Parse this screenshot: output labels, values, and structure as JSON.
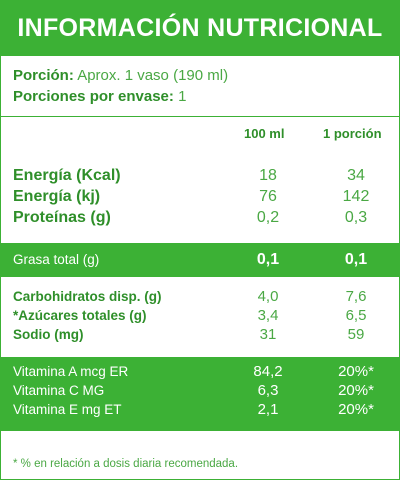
{
  "title": "INFORMACIÓN NUTRICIONAL",
  "serving": {
    "portion_label": "Porción:",
    "portion_value": "Aprox. 1 vaso (190 ml)",
    "per_container_label": "Porciones por envase:",
    "per_container_value": "1"
  },
  "columns": {
    "per100": "100 ml",
    "perPortion": "1 porción"
  },
  "energy_rows": [
    {
      "name": "Energía (Kcal)",
      "per100": "18",
      "perPortion": "34"
    },
    {
      "name": "Energía (kj)",
      "per100": "76",
      "perPortion": "142"
    },
    {
      "name": "Proteínas (g)",
      "per100": "0,2",
      "perPortion": "0,3"
    }
  ],
  "fat_row": {
    "name": "Grasa total (g)",
    "per100": "0,1",
    "perPortion": "0,1"
  },
  "carb_rows": [
    {
      "name": "Carbohidratos disp. (g)",
      "per100": "4,0",
      "perPortion": "7,6"
    },
    {
      "name": "*Azúcares totales (g)",
      "per100": "3,4",
      "perPortion": "6,5"
    },
    {
      "name": "Sodio (mg)",
      "per100": "31",
      "perPortion": "59"
    }
  ],
  "vitamin_rows": [
    {
      "name": "Vitamina A mcg ER",
      "per100": "84,2",
      "perPortion": "20%*"
    },
    {
      "name": "Vitamina C MG",
      "per100": "6,3",
      "perPortion": "20%*"
    },
    {
      "name": "Vitamina E mg ET",
      "per100": "2,1",
      "perPortion": "20%*"
    }
  ],
  "footnote": "* % en relación a dosis diaria recomendada.",
  "colors": {
    "accent": "#3cb135",
    "text": "#2f8f2a",
    "value": "#4aa844"
  }
}
